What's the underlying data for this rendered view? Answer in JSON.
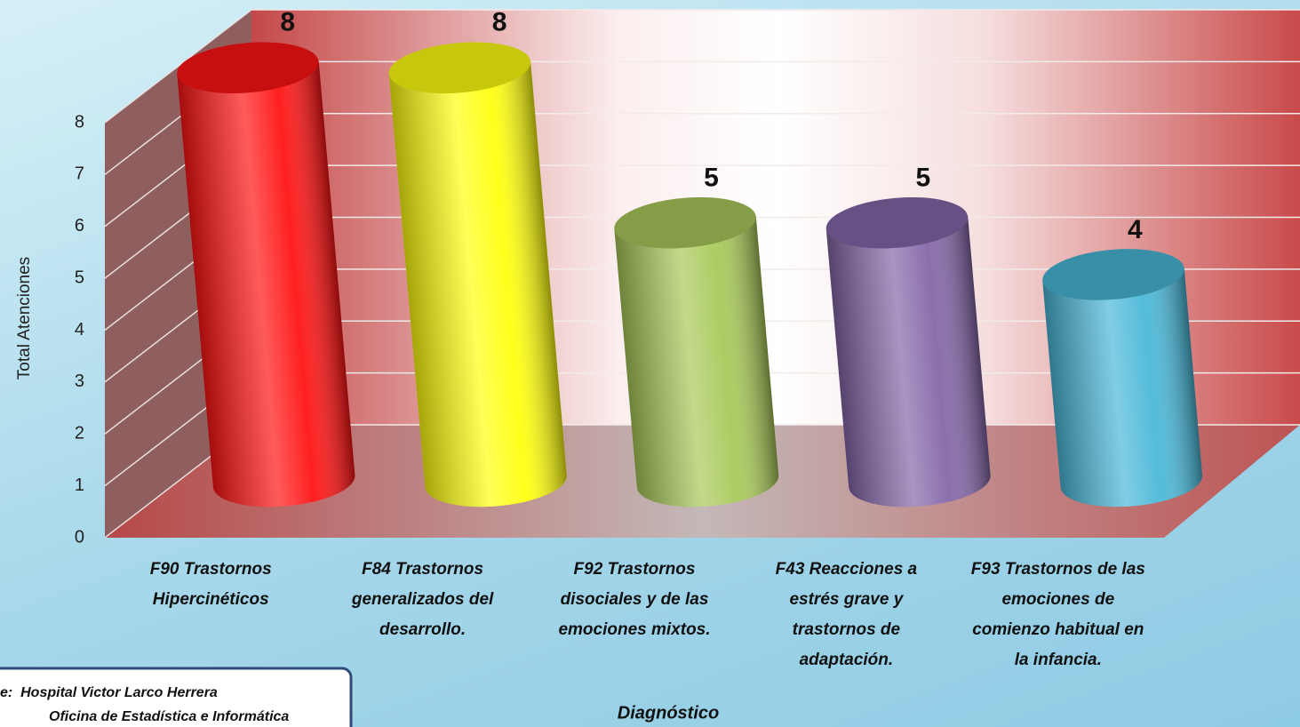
{
  "chart_data": {
    "type": "bar3d",
    "categories": [
      "F90 Trastornos Hipercinéticos",
      "F84 Trastornos generalizados del desarrollo.",
      "F92 Trastornos disociales y de las emociones mixtos.",
      "F43 Reacciones a estrés grave y trastornos de adaptación.",
      "F93 Trastornos de las emociones de comienzo habitual en la infancia."
    ],
    "values": [
      8,
      8,
      5,
      5,
      4
    ],
    "colors": [
      "#ff1414",
      "#ffff10",
      "#a9c95a",
      "#8467a8",
      "#4ab8d8"
    ],
    "ylim": [
      0,
      8
    ],
    "yticks": [
      0,
      1,
      2,
      3,
      4,
      5,
      6,
      7,
      8
    ],
    "grid": true,
    "y_label": "Total Atenciones",
    "x_label": "Diagnóstico",
    "source": [
      "e:  Hospital Victor Larco Herrera",
      "Oficina de Estadística e Informática"
    ]
  }
}
